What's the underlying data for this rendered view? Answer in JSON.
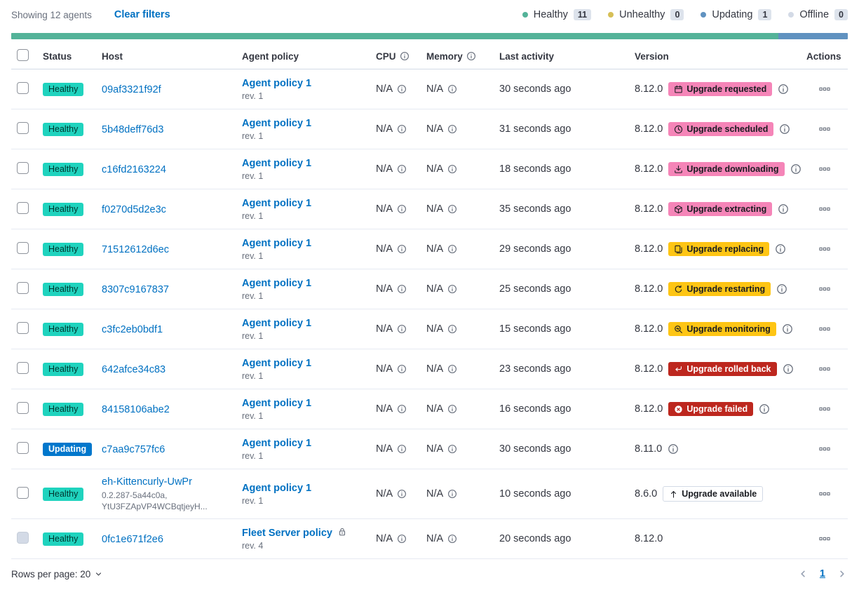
{
  "header": {
    "showing": "Showing 12 agents",
    "clear_filters": "Clear filters",
    "legend": [
      {
        "label": "Healthy",
        "count": "11",
        "color": "#54B399"
      },
      {
        "label": "Unhealthy",
        "count": "0",
        "color": "#D6BF57"
      },
      {
        "label": "Updating",
        "count": "1",
        "color": "#6092C0"
      },
      {
        "label": "Offline",
        "count": "0",
        "color": "#D3DAE6"
      }
    ],
    "status_bar": {
      "segments": [
        {
          "name": "healthy",
          "value": 11,
          "color": "#54B399"
        },
        {
          "name": "updating",
          "value": 1,
          "color": "#6092C0"
        }
      ]
    }
  },
  "colors": {
    "link": "#0071C2",
    "healthy": "#1FD3BE",
    "updating": "#0077CC",
    "accent": "#F585B8",
    "warning": "#FEC514",
    "danger": "#BD271E"
  },
  "table": {
    "columns": [
      {
        "label": "Status"
      },
      {
        "label": "Host"
      },
      {
        "label": "Agent policy"
      },
      {
        "label": "CPU",
        "info": true
      },
      {
        "label": "Memory",
        "info": true
      },
      {
        "label": "Last activity"
      },
      {
        "label": "Version"
      },
      {
        "label": "Actions"
      }
    ],
    "rows": [
      {
        "status": {
          "label": "Healthy",
          "variant": "healthy"
        },
        "host": {
          "name": "09af3321f92f",
          "subs": []
        },
        "policy": {
          "name": "Agent policy 1",
          "rev": "rev. 1",
          "locked": false
        },
        "cpu": "N/A",
        "memory": "N/A",
        "last_activity": "30 seconds ago",
        "version": "8.12.0",
        "upgrade": {
          "label": "Upgrade requested",
          "icon": "calendar-icon",
          "variant": "accent"
        },
        "version_info": true,
        "checkbox_disabled": false
      },
      {
        "status": {
          "label": "Healthy",
          "variant": "healthy"
        },
        "host": {
          "name": "5b48deff76d3",
          "subs": []
        },
        "policy": {
          "name": "Agent policy 1",
          "rev": "rev. 1",
          "locked": false
        },
        "cpu": "N/A",
        "memory": "N/A",
        "last_activity": "31 seconds ago",
        "version": "8.12.0",
        "upgrade": {
          "label": "Upgrade scheduled",
          "icon": "clock-icon",
          "variant": "accent"
        },
        "version_info": true,
        "checkbox_disabled": false
      },
      {
        "status": {
          "label": "Healthy",
          "variant": "healthy"
        },
        "host": {
          "name": "c16fd2163224",
          "subs": []
        },
        "policy": {
          "name": "Agent policy 1",
          "rev": "rev. 1",
          "locked": false
        },
        "cpu": "N/A",
        "memory": "N/A",
        "last_activity": "18 seconds ago",
        "version": "8.12.0",
        "upgrade": {
          "label": "Upgrade downloading",
          "icon": "download-icon",
          "variant": "accent"
        },
        "version_info": true,
        "checkbox_disabled": false
      },
      {
        "status": {
          "label": "Healthy",
          "variant": "healthy"
        },
        "host": {
          "name": "f0270d5d2e3c",
          "subs": []
        },
        "policy": {
          "name": "Agent policy 1",
          "rev": "rev. 1",
          "locked": false
        },
        "cpu": "N/A",
        "memory": "N/A",
        "last_activity": "35 seconds ago",
        "version": "8.12.0",
        "upgrade": {
          "label": "Upgrade extracting",
          "icon": "package-icon",
          "variant": "accent"
        },
        "version_info": true,
        "checkbox_disabled": false
      },
      {
        "status": {
          "label": "Healthy",
          "variant": "healthy"
        },
        "host": {
          "name": "71512612d6ec",
          "subs": []
        },
        "policy": {
          "name": "Agent policy 1",
          "rev": "rev. 1",
          "locked": false
        },
        "cpu": "N/A",
        "memory": "N/A",
        "last_activity": "29 seconds ago",
        "version": "8.12.0",
        "upgrade": {
          "label": "Upgrade replacing",
          "icon": "copy-icon",
          "variant": "warning"
        },
        "version_info": true,
        "checkbox_disabled": false
      },
      {
        "status": {
          "label": "Healthy",
          "variant": "healthy"
        },
        "host": {
          "name": "8307c9167837",
          "subs": []
        },
        "policy": {
          "name": "Agent policy 1",
          "rev": "rev. 1",
          "locked": false
        },
        "cpu": "N/A",
        "memory": "N/A",
        "last_activity": "25 seconds ago",
        "version": "8.12.0",
        "upgrade": {
          "label": "Upgrade restarting",
          "icon": "refresh-icon",
          "variant": "warning"
        },
        "version_info": true,
        "checkbox_disabled": false
      },
      {
        "status": {
          "label": "Healthy",
          "variant": "healthy"
        },
        "host": {
          "name": "c3fc2eb0bdf1",
          "subs": []
        },
        "policy": {
          "name": "Agent policy 1",
          "rev": "rev. 1",
          "locked": false
        },
        "cpu": "N/A",
        "memory": "N/A",
        "last_activity": "15 seconds ago",
        "version": "8.12.0",
        "upgrade": {
          "label": "Upgrade monitoring",
          "icon": "inspect-icon",
          "variant": "warning"
        },
        "version_info": true,
        "checkbox_disabled": false
      },
      {
        "status": {
          "label": "Healthy",
          "variant": "healthy"
        },
        "host": {
          "name": "642afce34c83",
          "subs": []
        },
        "policy": {
          "name": "Agent policy 1",
          "rev": "rev. 1",
          "locked": false
        },
        "cpu": "N/A",
        "memory": "N/A",
        "last_activity": "23 seconds ago",
        "version": "8.12.0",
        "upgrade": {
          "label": "Upgrade rolled back",
          "icon": "return-icon",
          "variant": "danger"
        },
        "version_info": true,
        "checkbox_disabled": false
      },
      {
        "status": {
          "label": "Healthy",
          "variant": "healthy"
        },
        "host": {
          "name": "84158106abe2",
          "subs": []
        },
        "policy": {
          "name": "Agent policy 1",
          "rev": "rev. 1",
          "locked": false
        },
        "cpu": "N/A",
        "memory": "N/A",
        "last_activity": "16 seconds ago",
        "version": "8.12.0",
        "upgrade": {
          "label": "Upgrade failed",
          "icon": "error-icon",
          "variant": "danger"
        },
        "version_info": true,
        "checkbox_disabled": false
      },
      {
        "status": {
          "label": "Updating",
          "variant": "updating"
        },
        "host": {
          "name": "c7aa9c757fc6",
          "subs": []
        },
        "policy": {
          "name": "Agent policy 1",
          "rev": "rev. 1",
          "locked": false
        },
        "cpu": "N/A",
        "memory": "N/A",
        "last_activity": "30 seconds ago",
        "version": "8.11.0",
        "upgrade": null,
        "version_info": true,
        "checkbox_disabled": false
      },
      {
        "status": {
          "label": "Healthy",
          "variant": "healthy"
        },
        "host": {
          "name": "eh-Kittencurly-UwPr",
          "subs": [
            "0.2.287-5a44c0a,",
            "YtU3FZApVP4WCBqtjeyH..."
          ]
        },
        "policy": {
          "name": "Agent policy 1",
          "rev": "rev. 1",
          "locked": false
        },
        "cpu": "N/A",
        "memory": "N/A",
        "last_activity": "10 seconds ago",
        "version": "8.6.0",
        "upgrade": {
          "label": "Upgrade available",
          "icon": "arrow-up-icon",
          "variant": "hollow"
        },
        "version_info": false,
        "checkbox_disabled": false
      },
      {
        "status": {
          "label": "Healthy",
          "variant": "healthy"
        },
        "host": {
          "name": "0fc1e671f2e6",
          "subs": []
        },
        "policy": {
          "name": "Fleet Server policy",
          "rev": "rev. 4",
          "locked": true
        },
        "cpu": "N/A",
        "memory": "N/A",
        "last_activity": "20 seconds ago",
        "version": "8.12.0",
        "upgrade": null,
        "version_info": false,
        "checkbox_disabled": true
      }
    ]
  },
  "footer": {
    "rows_per_page": "Rows per page: 20",
    "page": "1"
  }
}
